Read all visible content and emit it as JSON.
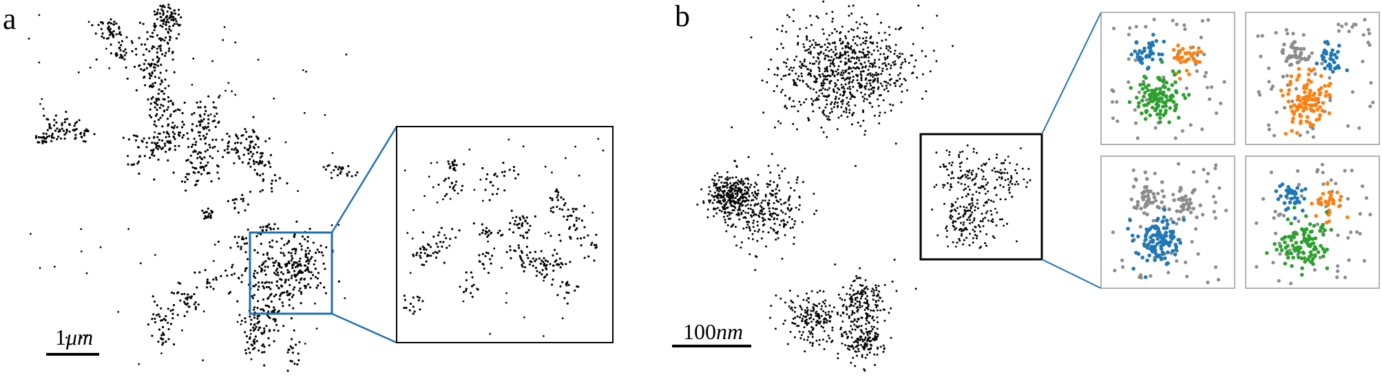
{
  "figure": {
    "panel_a": {
      "label": "a",
      "scale_bar_label": "1",
      "scale_bar_unit": "μm",
      "inset_frame_color": "#1f6fb5",
      "point_color": "#000000"
    },
    "panel_b": {
      "label": "b",
      "scale_bar_label": "100",
      "scale_bar_unit": "nm",
      "point_color": "#000000",
      "cluster_colors": {
        "blue": "#1f77b4",
        "orange": "#ff7f0e",
        "green": "#2ca02c",
        "gray": "#8c8c8c"
      },
      "inset_frame_color": "#1f6fb5",
      "small_panel_count": 4
    }
  }
}
